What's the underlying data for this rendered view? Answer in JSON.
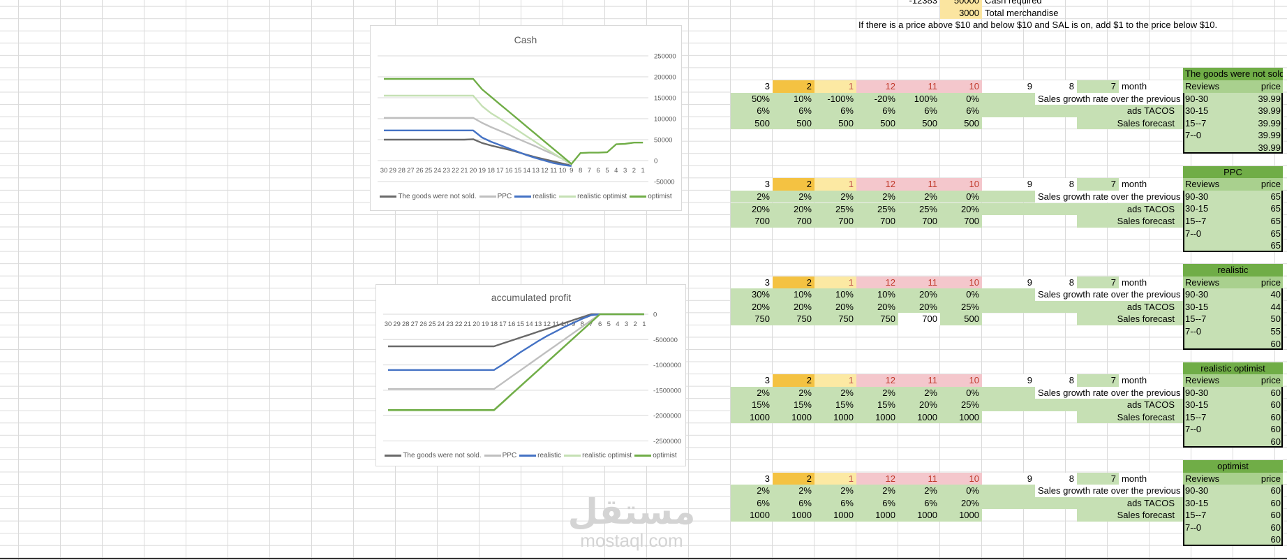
{
  "top": {
    "cash_value": "-12383",
    "cash_required": "50000",
    "cash_required_label": "Cash required",
    "total_merch": "3000",
    "total_merch_label": "Total merchandise",
    "note": "If there is a price above $10 and below $10 and SAL is on, add $1 to the price below $10."
  },
  "months": [
    "3",
    "2",
    "1",
    "12",
    "11",
    "10",
    "9",
    "8",
    "7"
  ],
  "month_label": "month",
  "growth_label": "Sales growth rate over the previous mo",
  "tacos_label": "ads TACOS",
  "forecast_label": "Sales forecast",
  "reviews_header": "Reviews",
  "price_header": "price",
  "review_ranges": [
    "90-30",
    "30-15",
    "15--7",
    "7--0",
    ""
  ],
  "colors": {
    "green": "#c6e0b4",
    "orange": "#f4c242",
    "light_yellow": "#fce9a3",
    "pink": "#f4c7cc",
    "box_title": "#70ad47"
  },
  "blocks": [
    {
      "growth": [
        "50%",
        "10%",
        "-100%",
        "-20%",
        "100%",
        "0%"
      ],
      "tacos": [
        "6%",
        "6%",
        "6%",
        "6%",
        "6%",
        "6%"
      ],
      "forecast": [
        "500",
        "500",
        "500",
        "500",
        "500",
        "500"
      ],
      "scenario": {
        "title": "The goods were not sold.",
        "prices": [
          "39.99",
          "39.99",
          "39.99",
          "39.99",
          "39.99"
        ]
      }
    },
    {
      "growth": [
        "2%",
        "2%",
        "2%",
        "2%",
        "2%",
        "0%"
      ],
      "tacos": [
        "20%",
        "20%",
        "25%",
        "25%",
        "25%",
        "20%"
      ],
      "forecast": [
        "700",
        "700",
        "700",
        "700",
        "700",
        "700"
      ],
      "scenario": {
        "title": "PPC",
        "prices": [
          "65",
          "65",
          "65",
          "65",
          "65"
        ]
      }
    },
    {
      "growth": [
        "30%",
        "10%",
        "10%",
        "10%",
        "20%",
        "0%"
      ],
      "tacos": [
        "20%",
        "20%",
        "20%",
        "20%",
        "20%",
        "25%"
      ],
      "forecast": [
        "750",
        "750",
        "750",
        "750",
        "700",
        "500"
      ],
      "scenario": {
        "title": "realistic",
        "prices": [
          "40",
          "44",
          "50",
          "55",
          "60"
        ]
      }
    },
    {
      "growth": [
        "2%",
        "2%",
        "2%",
        "2%",
        "2%",
        "0%"
      ],
      "tacos": [
        "15%",
        "15%",
        "15%",
        "15%",
        "20%",
        "25%"
      ],
      "forecast": [
        "1000",
        "1000",
        "1000",
        "1000",
        "1000",
        "1000"
      ],
      "scenario": {
        "title": "realistic optimist",
        "prices": [
          "60",
          "60",
          "60",
          "60",
          "60"
        ]
      }
    },
    {
      "growth": [
        "2%",
        "2%",
        "2%",
        "2%",
        "2%",
        "0%"
      ],
      "tacos": [
        "6%",
        "6%",
        "6%",
        "6%",
        "6%",
        "20%"
      ],
      "forecast": [
        "1000",
        "1000",
        "1000",
        "1000",
        "1000",
        "1000"
      ],
      "scenario": {
        "title": "optimist",
        "prices": [
          "60",
          "60",
          "60",
          "60",
          "60"
        ]
      }
    }
  ],
  "watermark": {
    "arabic": "مستقل",
    "latin": "mostaql.com"
  },
  "chart_data": [
    {
      "type": "line",
      "title": "Cash",
      "xlabel": "",
      "ylabel": "",
      "categories": [
        "30",
        "29",
        "28",
        "27",
        "26",
        "25",
        "24",
        "23",
        "22",
        "21",
        "20",
        "19",
        "18",
        "17",
        "16",
        "15",
        "14",
        "13",
        "12",
        "11",
        "10",
        "9",
        "8",
        "7",
        "6",
        "5",
        "4",
        "3",
        "2",
        "1"
      ],
      "ylim": [
        -50000,
        250000
      ],
      "yticks": [
        "250000",
        "200000",
        "150000",
        "100000",
        "50000",
        "0",
        "-50000"
      ],
      "grid": true,
      "legend": "bottom",
      "series": [
        {
          "name": "The goods were not sold.",
          "color": "#696969",
          "values": [
            50000,
            50000,
            50000,
            50000,
            50000,
            50000,
            50000,
            50000,
            50000,
            50000,
            51000,
            42000,
            36000,
            31000,
            26000,
            20000,
            14000,
            8000,
            3000,
            -2000,
            -7000,
            -12000,
            null,
            null,
            null,
            null,
            null,
            null,
            null,
            null
          ]
        },
        {
          "name": "PPC",
          "color": "#bfbfbf",
          "values": [
            102000,
            102000,
            102000,
            102000,
            102000,
            102000,
            102000,
            102000,
            102000,
            102000,
            102000,
            90000,
            80000,
            71000,
            62000,
            52000,
            43000,
            34000,
            24000,
            15000,
            4000,
            -10000,
            null,
            null,
            null,
            null,
            null,
            null,
            null,
            null
          ]
        },
        {
          "name": "realistic",
          "color": "#4472c4",
          "values": [
            72000,
            72000,
            72000,
            72000,
            72000,
            72000,
            72000,
            72000,
            72000,
            72000,
            72000,
            55000,
            45000,
            37000,
            29000,
            21000,
            13000,
            6000,
            0,
            -6000,
            -10000,
            -13000,
            null,
            null,
            null,
            null,
            null,
            null,
            null,
            null
          ]
        },
        {
          "name": "realistic optimist",
          "color": "#c5e0b4",
          "values": [
            155000,
            155000,
            155000,
            155000,
            155000,
            155000,
            155000,
            155000,
            155000,
            155000,
            155000,
            130000,
            113000,
            100000,
            86000,
            72000,
            58000,
            44000,
            30000,
            17000,
            4000,
            -8000,
            null,
            null,
            null,
            null,
            null,
            null,
            null,
            null
          ]
        },
        {
          "name": "optimist",
          "color": "#70ad47",
          "values": [
            195000,
            195000,
            195000,
            195000,
            195000,
            195000,
            195000,
            195000,
            195000,
            195000,
            195000,
            170000,
            152200,
            134400,
            116600,
            98800,
            81000,
            63200,
            45400,
            27600,
            9800,
            -8000,
            18000,
            19000,
            19000,
            20000,
            39000,
            40000,
            43000,
            43000
          ]
        }
      ]
    },
    {
      "type": "line",
      "title": "accumulated profit",
      "xlabel": "",
      "ylabel": "",
      "categories": [
        "30",
        "29",
        "28",
        "27",
        "26",
        "25",
        "24",
        "23",
        "22",
        "21",
        "20",
        "19",
        "18",
        "17",
        "16",
        "15",
        "14",
        "13",
        "12",
        "11",
        "10",
        "9",
        "8",
        "7",
        "6",
        "5",
        "4",
        "3",
        "2",
        "1"
      ],
      "ylim": [
        -2500000,
        0
      ],
      "yticks": [
        "0",
        "-500000",
        "-1000000",
        "-1500000",
        "-2000000",
        "-2500000"
      ],
      "grid": true,
      "legend": "bottom",
      "series": [
        {
          "name": "The goods were not sold.",
          "color": "#696969",
          "values": [
            -633000,
            -633000,
            -633000,
            -633000,
            -633000,
            -633000,
            -633000,
            -633000,
            -633000,
            -633000,
            -633000,
            -633000,
            -633000,
            -575000,
            -518000,
            -460000,
            -403000,
            -345000,
            -288000,
            -230000,
            -173000,
            -115000,
            -58000,
            0,
            0,
            0,
            0,
            0,
            0,
            0
          ]
        },
        {
          "name": "PPC",
          "color": "#bfbfbf",
          "values": [
            -1475000,
            -1475000,
            -1475000,
            -1475000,
            -1475000,
            -1475000,
            -1475000,
            -1475000,
            -1475000,
            -1475000,
            -1475000,
            -1475000,
            -1475000,
            -1352000,
            -1229000,
            -1106000,
            -983000,
            -860000,
            -737000,
            -615000,
            -492000,
            -369000,
            -246000,
            -123000,
            0,
            0,
            0,
            0,
            0,
            0
          ]
        },
        {
          "name": "realistic",
          "color": "#4472c4",
          "values": [
            -1100000,
            -1100000,
            -1100000,
            -1100000,
            -1100000,
            -1100000,
            -1100000,
            -1100000,
            -1100000,
            -1100000,
            -1100000,
            -1100000,
            -1100000,
            -990000,
            -870000,
            -750000,
            -640000,
            -530000,
            -430000,
            -340000,
            -250000,
            -170000,
            -90000,
            -20000,
            0,
            0,
            0,
            0,
            0,
            0
          ]
        },
        {
          "name": "realistic optimist",
          "color": "#c5e0b4",
          "values": [
            -1900000,
            -1900000,
            -1900000,
            -1900000,
            -1900000,
            -1900000,
            -1900000,
            -1900000,
            -1900000,
            -1900000,
            -1900000,
            -1900000,
            -1900000,
            -1742000,
            -1583000,
            -1425000,
            -1267000,
            -1108000,
            -950000,
            -792000,
            -633000,
            -475000,
            -317000,
            -158000,
            0,
            0,
            0,
            0,
            0,
            0
          ]
        },
        {
          "name": "optimist",
          "color": "#70ad47",
          "values": [
            -1890000,
            -1890000,
            -1890000,
            -1890000,
            -1890000,
            -1890000,
            -1890000,
            -1890000,
            -1890000,
            -1890000,
            -1890000,
            -1890000,
            -1890000,
            -1733000,
            -1575000,
            -1418000,
            -1260000,
            -1103000,
            -945000,
            -788000,
            -630000,
            -473000,
            -315000,
            -158000,
            0,
            0,
            0,
            0,
            0,
            0
          ]
        }
      ]
    }
  ]
}
